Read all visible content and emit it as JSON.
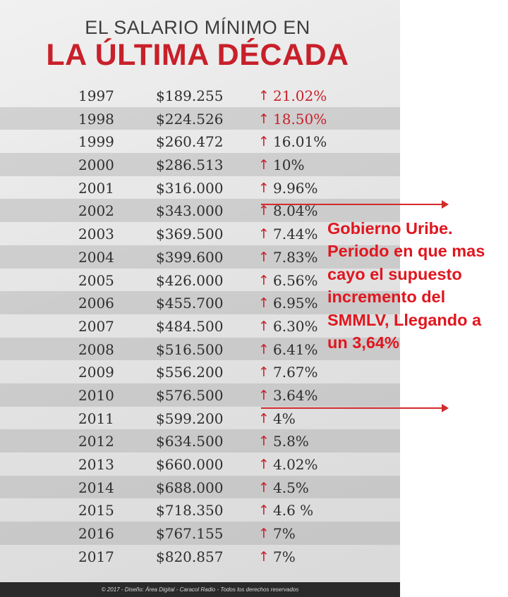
{
  "title_line1": "EL SALARIO MÍNIMO EN",
  "title_line2": "LA ÚLTIMA DÉCADA",
  "rows": [
    {
      "year": "1997",
      "amount": "$189.255",
      "arrow": "↑",
      "pct": "21.02%"
    },
    {
      "year": "1998",
      "amount": "$224.526",
      "arrow": "↑",
      "pct": "18.50%"
    },
    {
      "year": "1999",
      "amount": "$260.472",
      "arrow": "↑",
      "pct": "16.01%"
    },
    {
      "year": "2000",
      "amount": "$286.513",
      "arrow": "↑",
      "pct": "10%"
    },
    {
      "year": "2001",
      "amount": "$316.000",
      "arrow": "↑",
      "pct": "9.96%"
    },
    {
      "year": "2002",
      "amount": "$343.000",
      "arrow": "↑",
      "pct": "8.04%"
    },
    {
      "year": "2003",
      "amount": "$369.500",
      "arrow": "↑",
      "pct": "7.44%"
    },
    {
      "year": "2004",
      "amount": "$399.600",
      "arrow": "↑",
      "pct": "7.83%"
    },
    {
      "year": "2005",
      "amount": "$426.000",
      "arrow": "↑",
      "pct": "6.56%"
    },
    {
      "year": "2006",
      "amount": "$455.700",
      "arrow": "↑",
      "pct": "6.95%"
    },
    {
      "year": "2007",
      "amount": "$484.500",
      "arrow": "↑",
      "pct": "6.30%"
    },
    {
      "year": "2008",
      "amount": "$516.500",
      "arrow": "↑",
      "pct": "6.41%"
    },
    {
      "year": "2009",
      "amount": "$556.200",
      "arrow": "↑",
      "pct": "7.67%"
    },
    {
      "year": "2010",
      "amount": "$576.500",
      "arrow": "↑",
      "pct": "3.64%"
    },
    {
      "year": "2011",
      "amount": "$599.200",
      "arrow": "↑",
      "pct": "4%"
    },
    {
      "year": "2012",
      "amount": "$634.500",
      "arrow": "↑",
      "pct": "5.8%"
    },
    {
      "year": "2013",
      "amount": "$660.000",
      "arrow": "↑",
      "pct": "4.02%"
    },
    {
      "year": "2014",
      "amount": "$688.000",
      "arrow": "↑",
      "pct": "4.5%"
    },
    {
      "year": "2015",
      "amount": "$718.350",
      "arrow": "↑",
      "pct": "4.6 %"
    },
    {
      "year": "2016",
      "amount": "$767.155",
      "arrow": "↑",
      "pct": "7%"
    },
    {
      "year": "2017",
      "amount": "$820.857",
      "arrow": "↑",
      "pct": "7%"
    }
  ],
  "red_pct_years": [
    "1997",
    "1998"
  ],
  "annotation": "Gobierno Uribe. Periodo en que mas cayo el supuesto incremento del SMMLV, Llegando a un 3,64%",
  "footer": "© 2017 - Diseño: Área Digital - Caracol Radio - Todos los derechos reservados",
  "colors": {
    "accent_red": "#c8202a",
    "annotation_red": "#e0161e",
    "text": "#2e2e2e"
  }
}
